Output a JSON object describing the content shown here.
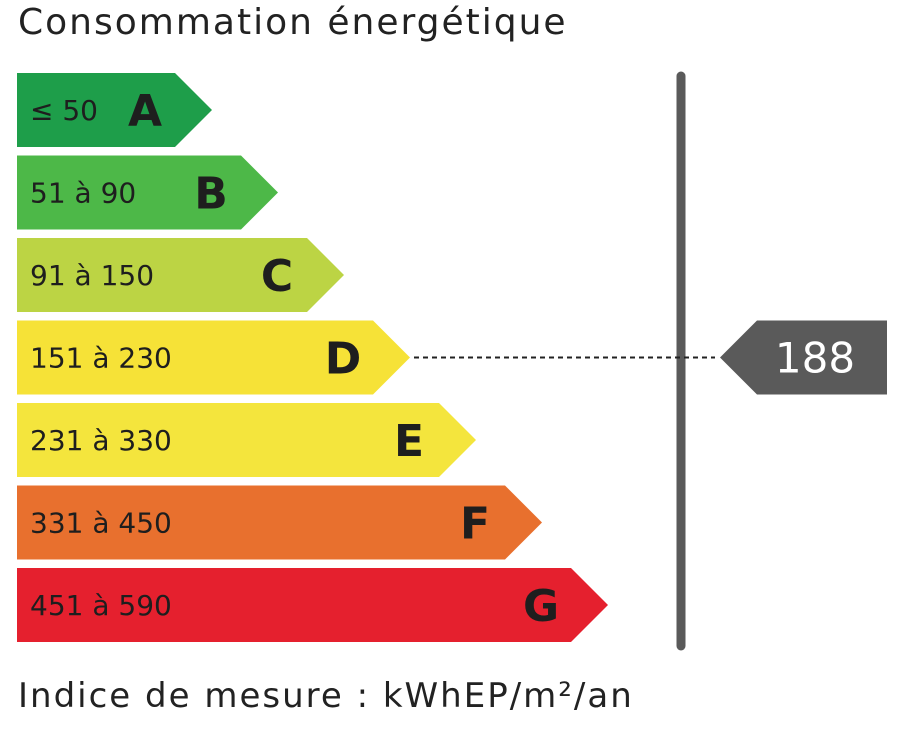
{
  "title": "Consommation énergétique",
  "footer": "Indice de mesure : kWhEP/m²/an",
  "chart_data": {
    "type": "bar",
    "categories": [
      "A",
      "B",
      "C",
      "D",
      "E",
      "F",
      "G"
    ],
    "ranges": [
      "≤ 50",
      "51 à 90",
      "91 à 150",
      "151 à 230",
      "231 à 330",
      "331 à 450",
      "451 à 590"
    ],
    "colors": [
      "#1e9e4a",
      "#4db848",
      "#bcd444",
      "#f6e237",
      "#f4e53d",
      "#e8702e",
      "#e5202e"
    ],
    "current_value": "188",
    "current_class": "D",
    "marker_color": "#5a5a5a"
  }
}
